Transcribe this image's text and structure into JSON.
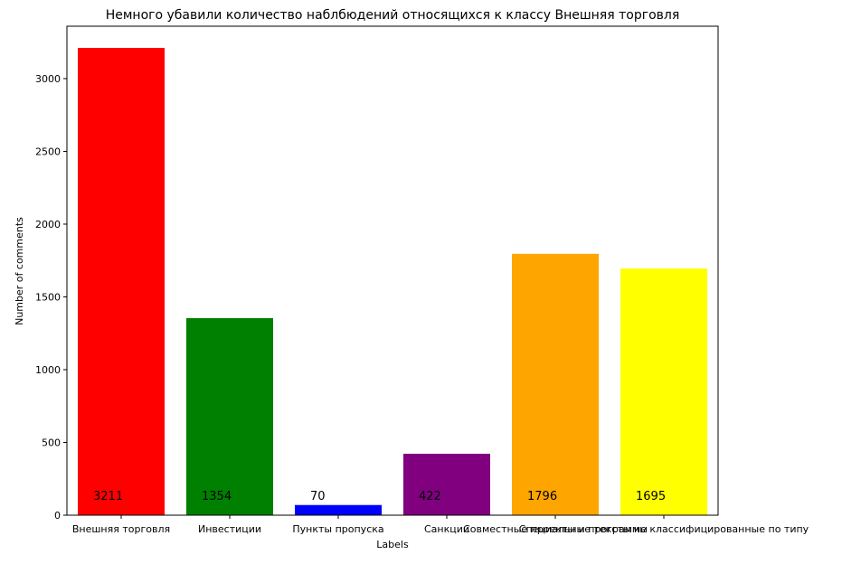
{
  "chart_data": {
    "type": "bar",
    "title": "Немного убавили количество наблбюдений относящихся к классу Внешняя торговля",
    "xlabel": "Labels",
    "ylabel": "Number of comments",
    "categories": [
      "Внешняя торговля",
      "Инвестиции",
      "Пункты пропуска",
      "Санкции",
      "Совместные проекты и программы",
      "Специальные тексты не классифицированные по типу"
    ],
    "values": [
      3211,
      1354,
      70,
      422,
      1796,
      1695
    ],
    "data_labels": [
      "3211",
      "1354",
      "70",
      "422",
      "1796",
      "1695"
    ],
    "colors": [
      "#ff0000",
      "#008000",
      "#0000ff",
      "#800080",
      "#ffa500",
      "#ffff00"
    ],
    "ylim": [
      0,
      3360
    ],
    "yticks": [
      0,
      500,
      1000,
      1500,
      2000,
      2500,
      3000
    ],
    "ytick_labels": [
      "0",
      "500",
      "1000",
      "1500",
      "2000",
      "2500",
      "3000"
    ],
    "grid": false,
    "legend": "none"
  }
}
